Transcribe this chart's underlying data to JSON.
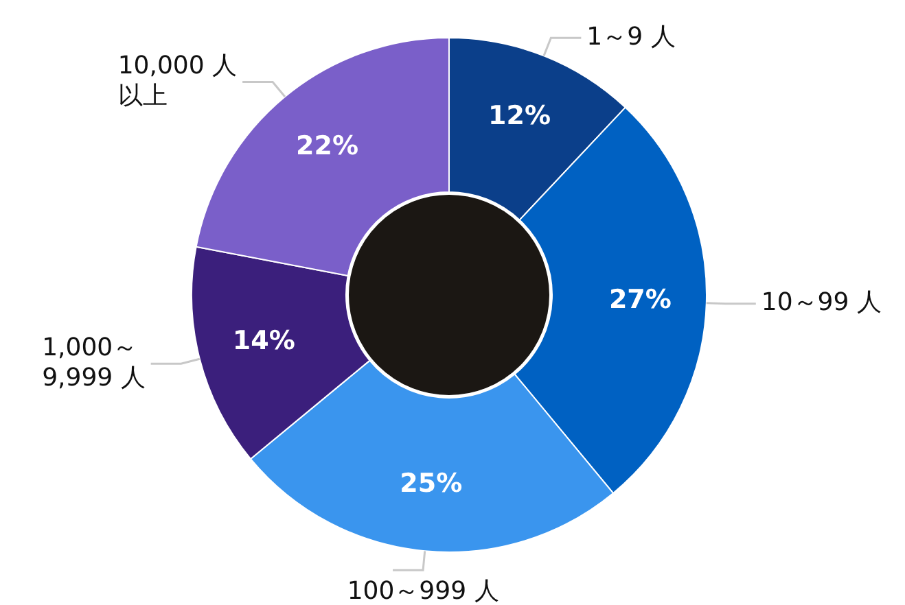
{
  "chart_data": {
    "type": "donut",
    "categories": [
      "1～9 人",
      "10～99 人",
      "100～999 人",
      "1,000～9,999 人",
      "10,000 人以上"
    ],
    "values": [
      12,
      27,
      25,
      14,
      22
    ],
    "colors": [
      "#0b3f8a",
      "#0061c2",
      "#3a95ee",
      "#3b1f7c",
      "#7a5fc9"
    ],
    "value_labels": [
      "12%",
      "27%",
      "25%",
      "14%",
      "22%"
    ],
    "legend": false
  }
}
